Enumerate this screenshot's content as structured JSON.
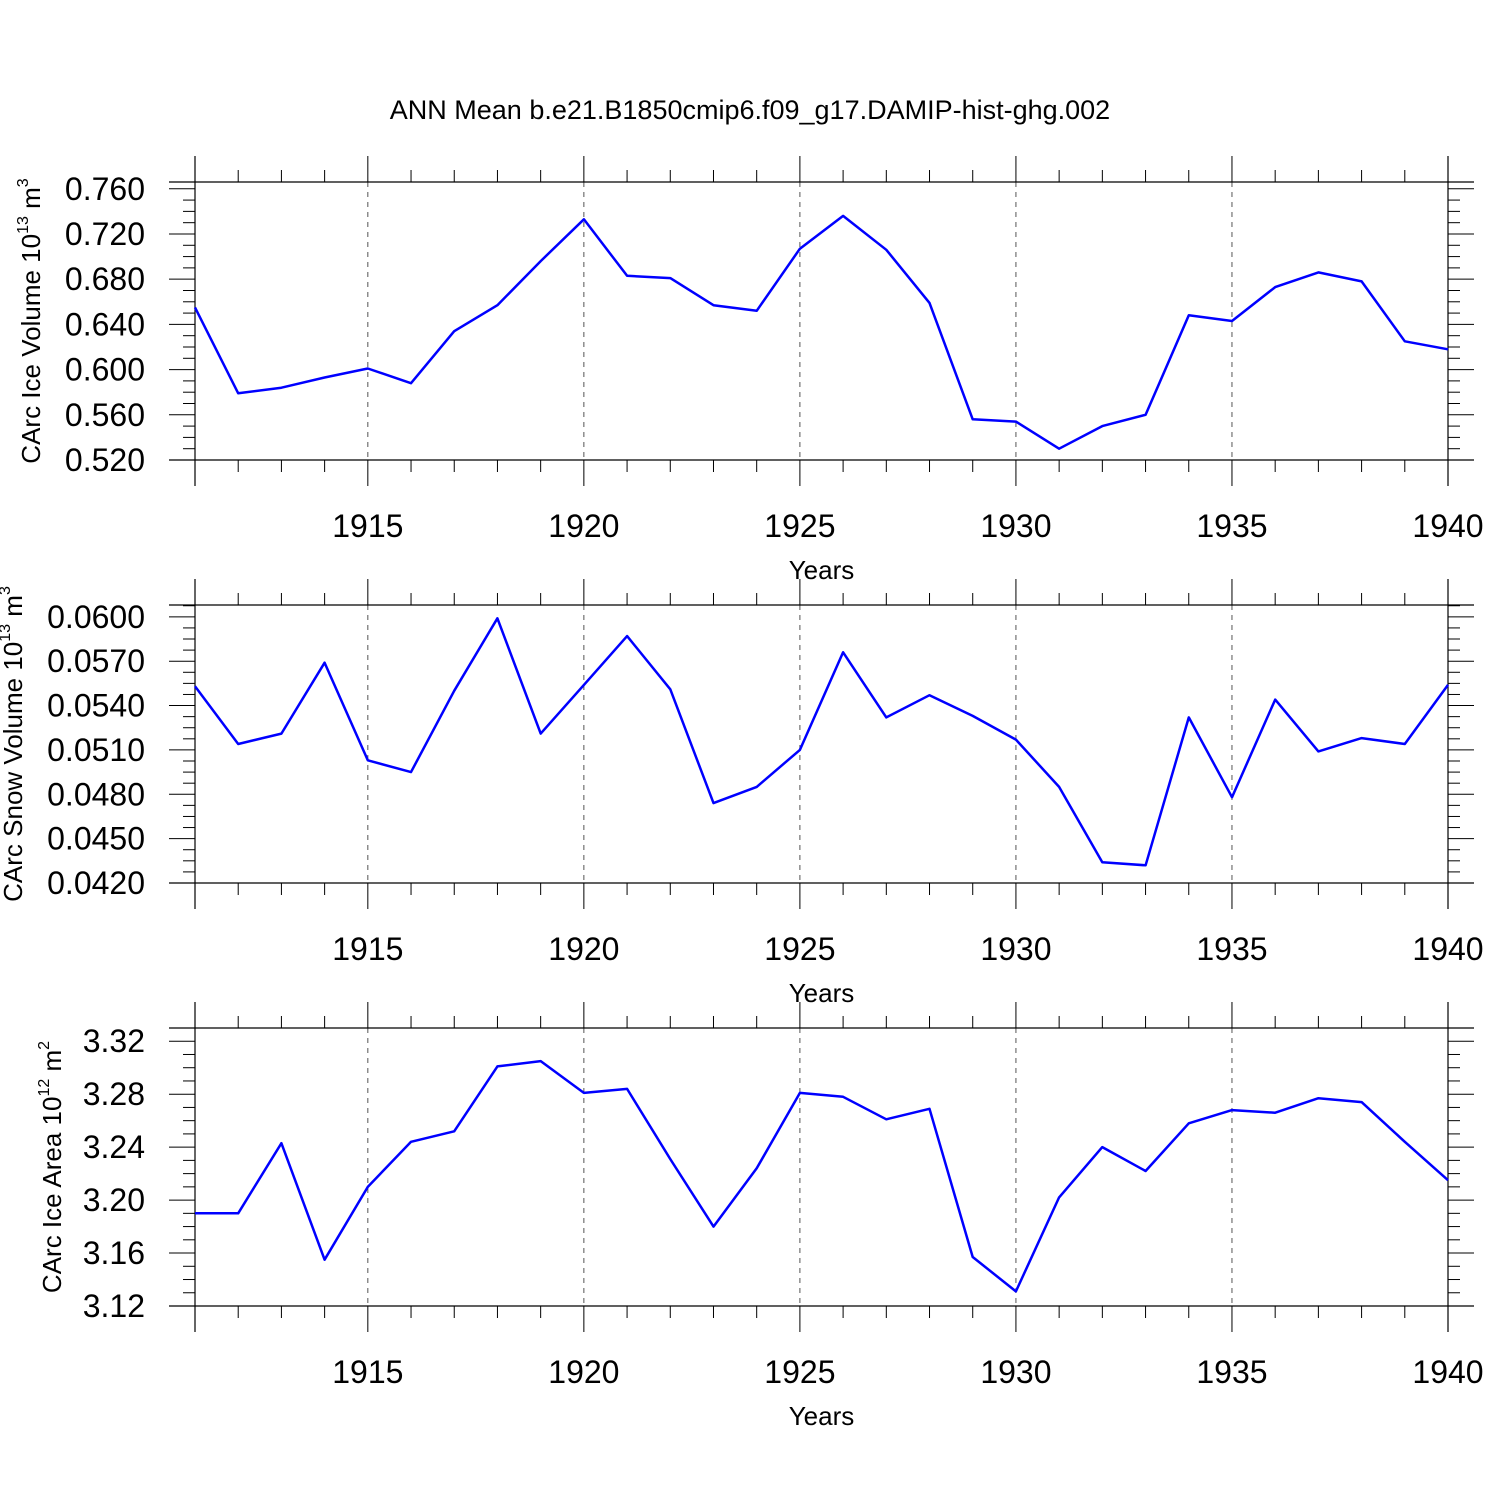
{
  "title": "ANN Mean b.e21.B1850cmip6.f09_g17.DAMIP-hist-ghg.002",
  "colors": {
    "line": "#0000ff",
    "axes": "#000000",
    "grid": "#555555"
  },
  "chart_data": [
    {
      "type": "line",
      "ylabel": {
        "base": "CArc Ice Volume 10",
        "exponent": "13",
        "unit": " m",
        "unit_exponent": "3"
      },
      "xlabel": "Years",
      "xlim": [
        1911,
        1940
      ],
      "ylim": [
        0.52,
        0.766
      ],
      "yticks": [
        "0.760",
        "0.720",
        "0.680",
        "0.640",
        "0.600",
        "0.560",
        "0.520"
      ],
      "xticks": [
        "1915",
        "1920",
        "1925",
        "1930",
        "1935",
        "1940"
      ],
      "grid": "vertical dashed at major x ticks",
      "x": [
        1911,
        1912,
        1913,
        1914,
        1915,
        1916,
        1917,
        1918,
        1919,
        1920,
        1921,
        1922,
        1923,
        1924,
        1925,
        1926,
        1927,
        1928,
        1929,
        1930,
        1931,
        1932,
        1933,
        1934,
        1935,
        1936,
        1937,
        1938,
        1939,
        1940
      ],
      "series": [
        {
          "values": [
            0.655,
            0.579,
            0.584,
            0.593,
            0.601,
            0.588,
            0.634,
            0.657,
            0.696,
            0.733,
            0.683,
            0.681,
            0.657,
            0.652,
            0.707,
            0.736,
            0.706,
            0.659,
            0.556,
            0.554,
            0.53,
            0.55,
            0.56,
            0.648,
            0.643,
            0.673,
            0.686,
            0.678,
            0.625,
            0.618
          ]
        }
      ]
    },
    {
      "type": "line",
      "ylabel": {
        "base": "CArc Snow Volume 10",
        "exponent": "13",
        "unit": " m",
        "unit_exponent": "3"
      },
      "xlabel": "Years",
      "xlim": [
        1911,
        1940
      ],
      "ylim": [
        0.042,
        0.0608
      ],
      "yticks": [
        "0.0600",
        "0.0570",
        "0.0540",
        "0.0510",
        "0.0480",
        "0.0450",
        "0.0420"
      ],
      "xticks": [
        "1915",
        "1920",
        "1925",
        "1930",
        "1935",
        "1940"
      ],
      "grid": "vertical dashed at major x ticks",
      "x": [
        1911,
        1912,
        1913,
        1914,
        1915,
        1916,
        1917,
        1918,
        1919,
        1920,
        1921,
        1922,
        1923,
        1924,
        1925,
        1926,
        1927,
        1928,
        1929,
        1930,
        1931,
        1932,
        1933,
        1934,
        1935,
        1936,
        1937,
        1938,
        1939,
        1940
      ],
      "series": [
        {
          "values": [
            0.0553,
            0.0514,
            0.0521,
            0.0569,
            0.0503,
            0.0495,
            0.055,
            0.0599,
            0.0521,
            0.0554,
            0.0587,
            0.0551,
            0.0474,
            0.0485,
            0.051,
            0.0576,
            0.0532,
            0.0547,
            0.0533,
            0.0517,
            0.0485,
            0.0434,
            0.0432,
            0.0532,
            0.0478,
            0.0544,
            0.0509,
            0.0518,
            0.0514,
            0.0554
          ]
        }
      ]
    },
    {
      "type": "line",
      "ylabel": {
        "base": "CArc Ice Area 10",
        "exponent": "12",
        "unit": " m",
        "unit_exponent": "2"
      },
      "xlabel": "Years",
      "xlim": [
        1911,
        1940
      ],
      "ylim": [
        3.12,
        3.33
      ],
      "yticks": [
        "3.32",
        "3.28",
        "3.24",
        "3.20",
        "3.16",
        "3.12"
      ],
      "xticks": [
        "1915",
        "1920",
        "1925",
        "1930",
        "1935",
        "1940"
      ],
      "grid": "vertical dashed at major x ticks",
      "x": [
        1911,
        1912,
        1913,
        1914,
        1915,
        1916,
        1917,
        1918,
        1919,
        1920,
        1921,
        1922,
        1923,
        1924,
        1925,
        1926,
        1927,
        1928,
        1929,
        1930,
        1931,
        1932,
        1933,
        1934,
        1935,
        1936,
        1937,
        1938,
        1939,
        1940
      ],
      "series": [
        {
          "values": [
            3.19,
            3.19,
            3.243,
            3.155,
            3.21,
            3.244,
            3.252,
            3.301,
            3.305,
            3.281,
            3.284,
            3.231,
            3.18,
            3.224,
            3.281,
            3.278,
            3.261,
            3.269,
            3.157,
            3.131,
            3.202,
            3.24,
            3.222,
            3.258,
            3.268,
            3.266,
            3.277,
            3.274,
            3.244,
            3.215
          ]
        }
      ]
    }
  ]
}
